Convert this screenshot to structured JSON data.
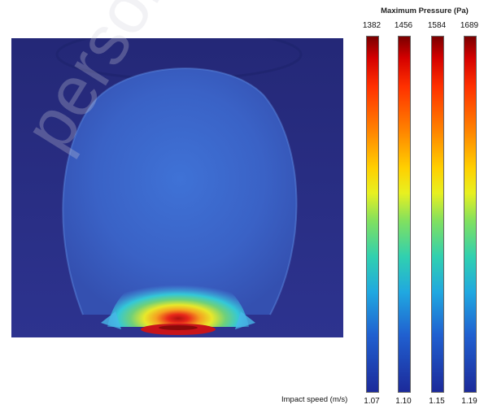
{
  "chart_data": {
    "type": "heatmap",
    "colormap": "jet",
    "colorbar_title": "Maximum Pressure (Pa)",
    "x_caption": "Impact speed (m/s)",
    "colorbars": [
      {
        "max_pressure": 1382,
        "impact_speed": 1.07
      },
      {
        "max_pressure": 1456,
        "impact_speed": 1.1
      },
      {
        "max_pressure": 1584,
        "impact_speed": 1.15
      },
      {
        "max_pressure": 1689,
        "impact_speed": 1.19
      }
    ],
    "colorbar_ticks": {
      "max_labels": [
        "1382",
        "1456",
        "1584",
        "1689"
      ],
      "speed_labels": [
        "1.07",
        "1.10",
        "1.15",
        "1.19"
      ]
    }
  },
  "watermark_text": "personal use only",
  "colors": {
    "background_field": "#2b2e88",
    "bubble_fill": "#3a64c8",
    "rim": "#1e236e"
  }
}
